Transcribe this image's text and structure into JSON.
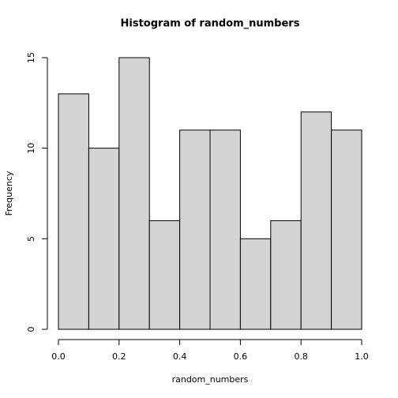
{
  "chart_data": {
    "type": "histogram",
    "title": "Histogram of random_numbers",
    "x_label": "random_numbers",
    "y_label": "Frequency",
    "bins": [
      0,
      0.1,
      0.2,
      0.3,
      0.4,
      0.5,
      0.6,
      0.7,
      0.8,
      0.9,
      1.0
    ],
    "values": [
      13,
      10,
      15,
      6,
      11,
      11,
      5,
      6,
      12,
      11
    ],
    "color": "#d3d3d3",
    "xlim": [
      0,
      1
    ],
    "xticks": [
      {
        "value": 0,
        "label": "0.0"
      },
      0.2,
      0.4,
      0.6,
      0.8,
      {
        "value": 1,
        "label": "1.0"
      }
    ],
    "ylim": [
      0,
      15
    ],
    "yticks": [
      0,
      5,
      10,
      15
    ]
  }
}
